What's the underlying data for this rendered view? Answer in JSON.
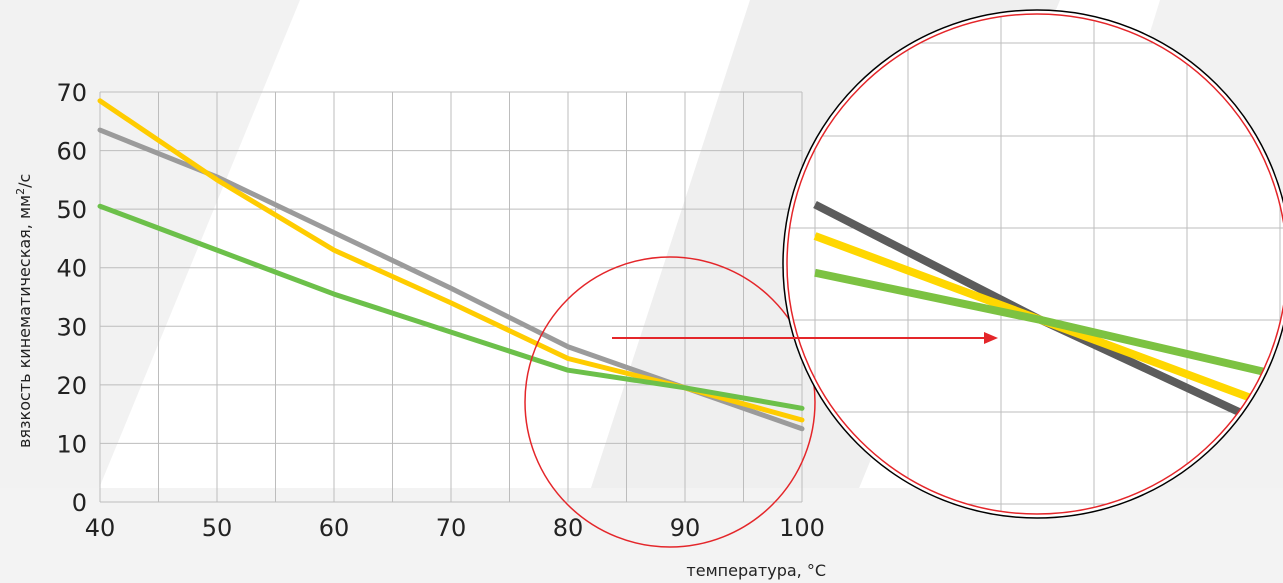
{
  "chart_data": {
    "type": "line",
    "title": "",
    "xlabel": "температура, °C",
    "ylabel_main": "вязкость кинематическая, мм",
    "ylabel_sup": "2",
    "ylabel_tail": "/с",
    "x_ticks": [
      "40",
      "50",
      "60",
      "70",
      "80",
      "90",
      "100"
    ],
    "y_ticks": [
      "0",
      "10",
      "20",
      "30",
      "40",
      "50",
      "60",
      "70"
    ],
    "xlim": [
      40,
      100
    ],
    "ylim": [
      0,
      70
    ],
    "grid": true,
    "x": [
      40,
      50,
      60,
      70,
      80,
      90,
      100
    ],
    "series": [
      {
        "color": "#9b9b9b",
        "values": [
          63.5,
          55.5,
          46,
          36.5,
          26.5,
          19.5,
          12.5
        ]
      },
      {
        "color": "#ffcc00",
        "values": [
          68.5,
          55,
          43,
          34,
          24.5,
          19.5,
          14
        ]
      },
      {
        "color": "#6cc04a",
        "values": [
          50.5,
          43,
          35.5,
          29,
          22.5,
          19.5,
          16
        ]
      }
    ],
    "zoom": {
      "x": [
        80,
        90,
        100
      ],
      "series": [
        {
          "color": "#5c5c5c",
          "values": [
            41.5,
            30.5,
            20.5
          ]
        },
        {
          "color": "#ffd700",
          "values": [
            38.5,
            30.5,
            22.5
          ]
        },
        {
          "color": "#7cc242",
          "values": [
            35,
            30.5,
            25.5
          ]
        }
      ]
    },
    "highlight_color": "#e4262a"
  }
}
